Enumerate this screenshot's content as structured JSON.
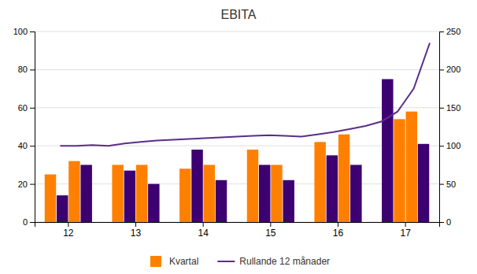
{
  "chart_data": {
    "type": "bar",
    "title": "EBITA",
    "categories": [
      "12",
      "13",
      "14",
      "15",
      "16",
      "17"
    ],
    "series": [
      {
        "name": "Kvartal",
        "type": "bar",
        "color": "#ff8000",
        "colors": [
          "#ff8000",
          "#ff8000",
          "#ff8000",
          "#ff8000",
          "#ff8000",
          "#3d0070"
        ],
        "values": [
          25,
          30,
          28,
          38,
          42,
          75
        ]
      },
      {
        "type": "bar",
        "colors": [
          "#3d0070",
          "#3d0070",
          "#3d0070",
          "#3d0070",
          "#3d0070",
          "#ff8000"
        ],
        "values": [
          14,
          27,
          38,
          30,
          35,
          54
        ]
      },
      {
        "type": "bar",
        "colors": [
          "#ff8000",
          "#ff8000",
          "#ff8000",
          "#ff8000",
          "#ff8000",
          "#ff8000"
        ],
        "values": [
          32,
          30,
          30,
          30,
          46,
          58
        ]
      },
      {
        "type": "bar",
        "colors": [
          "#3d0070",
          "#3d0070",
          "#3d0070",
          "#3d0070",
          "#3d0070",
          "#3d0070"
        ],
        "values": [
          30,
          20,
          22,
          22,
          30,
          41
        ]
      },
      {
        "name": "Rullande 12 månader",
        "type": "line",
        "axis": "y2",
        "color": "#5a2d8c",
        "x": [
          0.5,
          1,
          1.5,
          2,
          2.5,
          3,
          3.5,
          4,
          4.5,
          5,
          5.5,
          6,
          6.5,
          7,
          7.5,
          8,
          8.5,
          9,
          9.5,
          10,
          10.5,
          11,
          11.5,
          12
        ],
        "values": [
          100,
          100,
          101,
          100,
          103,
          105,
          107,
          108,
          109,
          110,
          111,
          112,
          113,
          114,
          113,
          112,
          115,
          118,
          122,
          126,
          132,
          145,
          175,
          235
        ]
      }
    ],
    "xlim": [
      0,
      12
    ],
    "ylim": [
      0,
      100
    ],
    "yticks": [
      0,
      20,
      40,
      60,
      80,
      100
    ],
    "y2lim": [
      0,
      250
    ],
    "y2ticks": [
      0,
      50,
      100,
      150,
      200,
      250
    ],
    "grid": true,
    "legend": "bottom"
  }
}
